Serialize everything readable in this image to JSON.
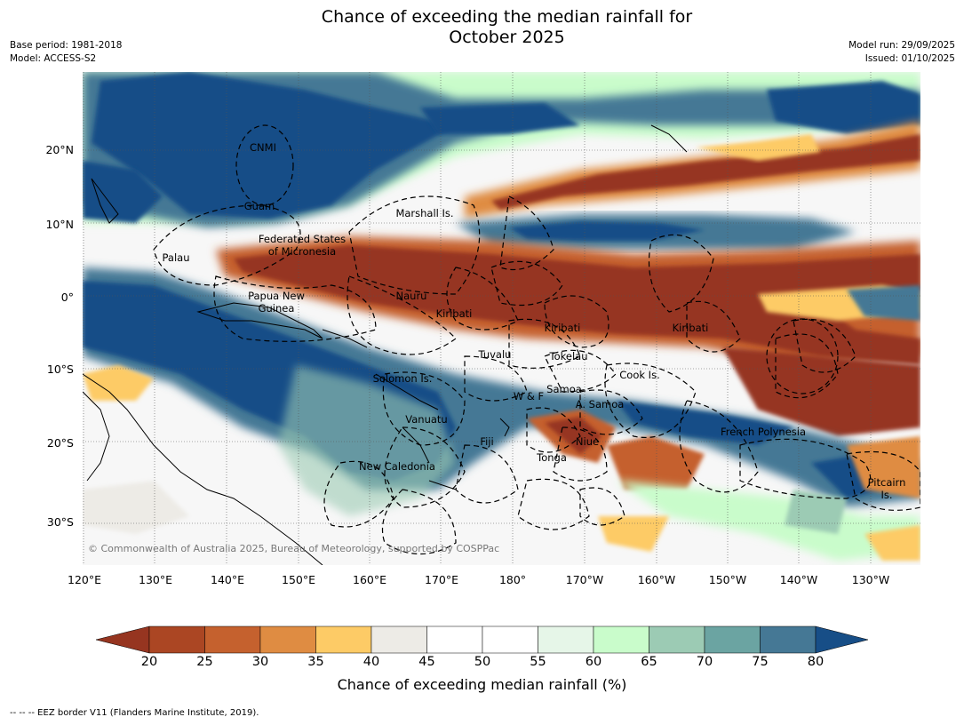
{
  "title_line1": "Chance of exceeding the median rainfall for",
  "title_line2": "October 2025",
  "base_period": "Base period: 1981-2018",
  "model": "Model: ACCESS-S2",
  "model_run": "Model run: 29/09/2025",
  "issued": "Issued: 01/10/2025",
  "lat_labels": [
    "20°N",
    "10°N",
    "0°",
    "10°S",
    "20°S",
    "30°S"
  ],
  "lon_labels": [
    "120°E",
    "130°E",
    "140°E",
    "150°E",
    "160°E",
    "170°E",
    "180°",
    "170°W",
    "160°W",
    "150°W",
    "140°W",
    "130°W"
  ],
  "regions": [
    {
      "name": "CNMI"
    },
    {
      "name": "Guam"
    },
    {
      "name": "Marshall Is."
    },
    {
      "name": "Federated States"
    },
    {
      "name": "of Micronesia"
    },
    {
      "name": "Palau"
    },
    {
      "name": "Papua New"
    },
    {
      "name": "Guinea"
    },
    {
      "name": "Nauru"
    },
    {
      "name": "Kiribati"
    },
    {
      "name": "Kiribati"
    },
    {
      "name": "Kiribati"
    },
    {
      "name": "Tuvalu"
    },
    {
      "name": "Tokelau"
    },
    {
      "name": "Cook Is."
    },
    {
      "name": "Solomon Is."
    },
    {
      "name": "Samoa"
    },
    {
      "name": "W & F"
    },
    {
      "name": "A. Samoa"
    },
    {
      "name": "Vanuatu"
    },
    {
      "name": "Fiji"
    },
    {
      "name": "Niue"
    },
    {
      "name": "Tonga"
    },
    {
      "name": "French Polynesia"
    },
    {
      "name": "Pitcairn"
    },
    {
      "name": "Is."
    },
    {
      "name": "New Caledonia"
    }
  ],
  "copyright": "© Commonwealth of Australia 2025, Bureau of Meteorology, supported by COSPPac",
  "colorbar": {
    "title": "Chance of exceeding median rainfall (%)",
    "ticks": [
      "20",
      "25",
      "30",
      "35",
      "40",
      "45",
      "50",
      "55",
      "60",
      "65",
      "70",
      "75",
      "80"
    ],
    "colors": [
      "#ab4623",
      "#c5612e",
      "#df8c42",
      "#fdcb66",
      "#edebe6",
      "#ffffff",
      "#ffffff",
      "#e6f6e8",
      "#c9fccb",
      "#9ccbb4",
      "#6ba4a2",
      "#457895"
    ],
    "under_color": "#963520",
    "over_color": "#174e87"
  },
  "footnote": "--  --  -- EEZ border V11 (Flanders Marine Institute, 2019).",
  "map_colors": {
    "ocean": "#f7f7f7",
    "wet": "#174e87",
    "wet_mid": "#457895",
    "green": "#9ccbb4",
    "light_green": "#c9fccb",
    "dry": "#963520",
    "dry_mid": "#c5612e",
    "orange": "#df8c42",
    "yellow": "#fdcb66",
    "grey": "#edebe6"
  }
}
